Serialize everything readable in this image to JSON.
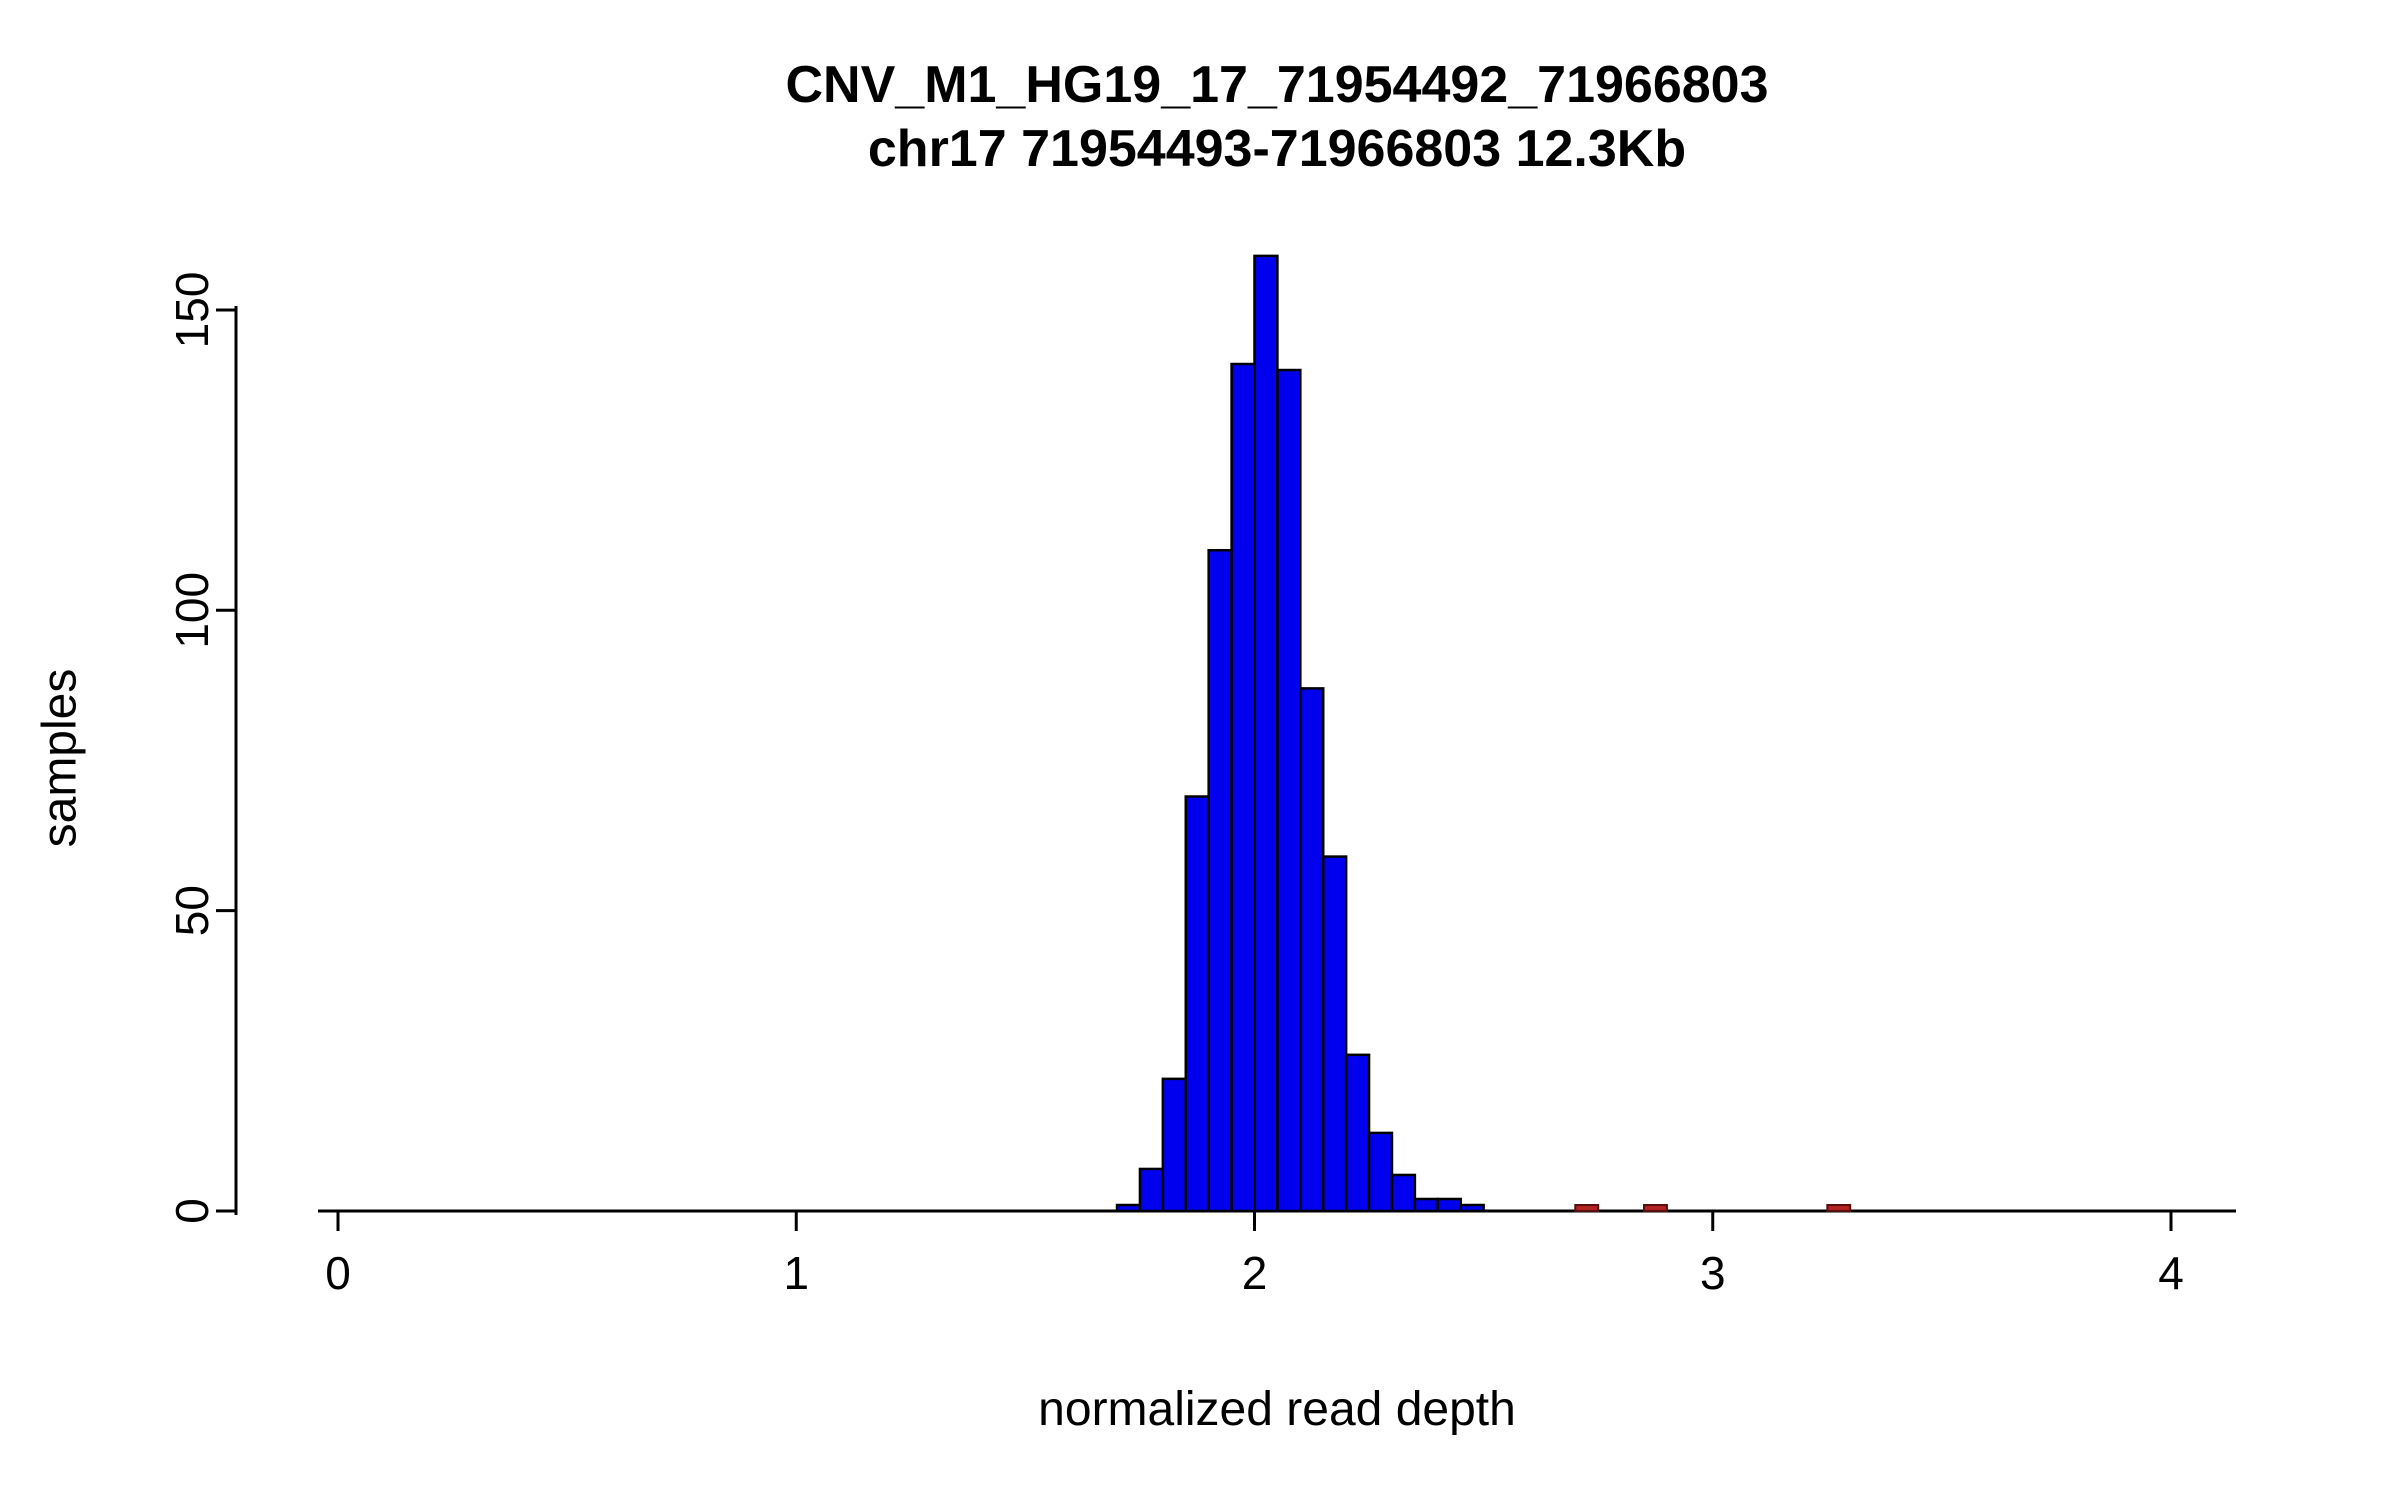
{
  "page": {
    "background": "#ffffff"
  },
  "chart_data": {
    "type": "bar",
    "subtype": "histogram",
    "title": "CNV_M1_HG19_17_71954492_71966803",
    "subtitle": "chr17 71954493-71966803 12.3Kb",
    "xlabel": "normalized read depth",
    "ylabel": "samples",
    "xlim": [
      0,
      4.14
    ],
    "ylim": [
      0,
      159
    ],
    "x_ticks": [
      0,
      1,
      2,
      3,
      4
    ],
    "y_ticks": [
      0,
      50,
      100,
      150
    ],
    "grid": false,
    "legend": false,
    "bin_width": 0.05,
    "bar_fill": "#0000EE",
    "bar_stroke": "#000000",
    "outlier_fill": "#B22222",
    "outlier_stroke": "#5A0F0F",
    "axis_color": "#000000",
    "bars": [
      {
        "x": 1.7,
        "count": 1
      },
      {
        "x": 1.75,
        "count": 7
      },
      {
        "x": 1.8,
        "count": 22
      },
      {
        "x": 1.85,
        "count": 69
      },
      {
        "x": 1.9,
        "count": 110
      },
      {
        "x": 1.95,
        "count": 141
      },
      {
        "x": 2.0,
        "count": 159
      },
      {
        "x": 2.05,
        "count": 140
      },
      {
        "x": 2.1,
        "count": 87
      },
      {
        "x": 2.15,
        "count": 59
      },
      {
        "x": 2.2,
        "count": 26
      },
      {
        "x": 2.25,
        "count": 13
      },
      {
        "x": 2.3,
        "count": 6
      },
      {
        "x": 2.35,
        "count": 2
      },
      {
        "x": 2.4,
        "count": 2
      },
      {
        "x": 2.45,
        "count": 1
      }
    ],
    "outliers": [
      {
        "x": 2.7,
        "count": 1
      },
      {
        "x": 2.85,
        "count": 1
      },
      {
        "x": 3.25,
        "count": 1
      }
    ]
  }
}
